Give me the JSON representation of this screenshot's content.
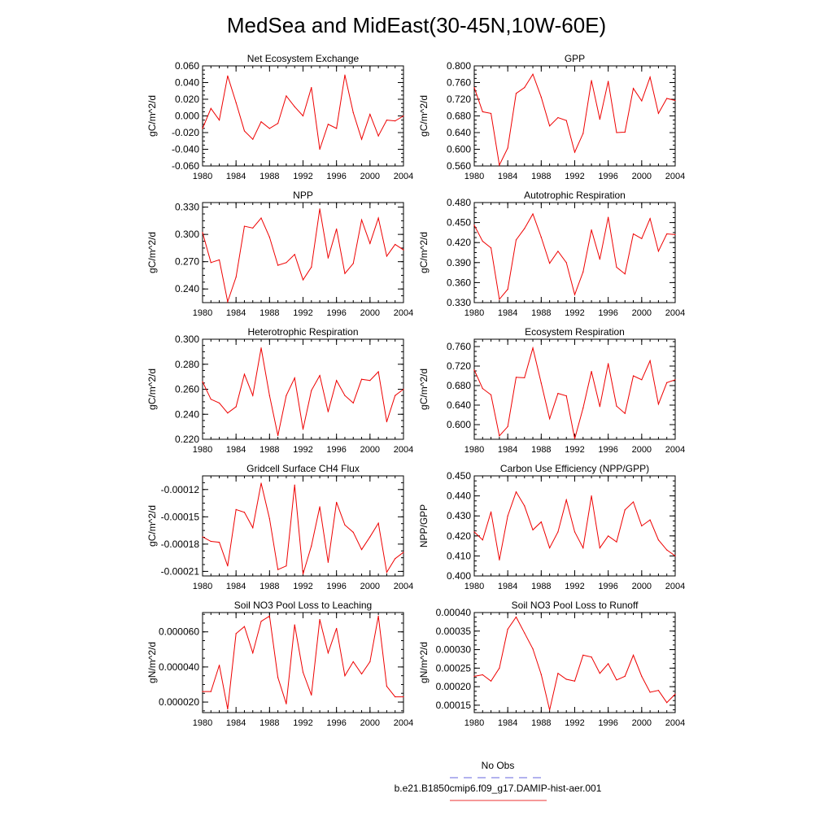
{
  "figure": {
    "title": "MedSea and MidEast(30-45N,10W-60E)",
    "legend": [
      {
        "label": "No Obs",
        "color": "#6666dd",
        "dash": true
      },
      {
        "label": "b.e21.B1850cmip6.f09_g17.DAMIP-hist-aer.001",
        "color": "#ee3333",
        "dash": false
      }
    ]
  },
  "chart_data": [
    {
      "type": "line",
      "title": "Net Ecosystem Exchange",
      "xlabel": "",
      "ylabel": "gC/m^2/d",
      "xlim": [
        1980,
        2004
      ],
      "ylim": [
        -0.06,
        0.06
      ],
      "xticks": [
        "1980",
        "1984",
        "1988",
        "1992",
        "1996",
        "2000",
        "2004"
      ],
      "yticks": [
        "0.060",
        "0.040",
        "0.020",
        "0.000",
        "-0.020",
        "-0.040",
        "-0.060"
      ],
      "ytick_values": [
        0.06,
        0.04,
        0.02,
        0.0,
        -0.02,
        -0.04,
        -0.06
      ],
      "series": [
        {
          "color": "#ee0000",
          "x": [
            1980,
            1981,
            1982,
            1983,
            1984,
            1985,
            1986,
            1987,
            1988,
            1989,
            1990,
            1991,
            1992,
            1993,
            1994,
            1995,
            1996,
            1997,
            1998,
            1999,
            2000,
            2001,
            2002,
            2003,
            2004
          ],
          "values": [
            -0.015,
            0.009,
            -0.005,
            0.048,
            0.016,
            -0.018,
            -0.028,
            -0.007,
            -0.015,
            -0.009,
            0.024,
            0.011,
            0.0,
            0.034,
            -0.04,
            -0.01,
            -0.015,
            0.049,
            0.004,
            -0.028,
            0.002,
            -0.024,
            -0.005,
            -0.006,
            0.0
          ]
        }
      ]
    },
    {
      "type": "line",
      "title": "GPP",
      "xlabel": "",
      "ylabel": "gC/m^2/d",
      "xlim": [
        1980,
        2004
      ],
      "ylim": [
        0.56,
        0.8
      ],
      "xticks": [
        "1980",
        "1984",
        "1988",
        "1992",
        "1996",
        "2000",
        "2004"
      ],
      "yticks": [
        "0.800",
        "0.760",
        "0.720",
        "0.680",
        "0.640",
        "0.600",
        "0.560"
      ],
      "ytick_values": [
        0.8,
        0.76,
        0.72,
        0.68,
        0.64,
        0.6,
        0.56
      ],
      "series": [
        {
          "color": "#ee0000",
          "x": [
            1980,
            1981,
            1982,
            1983,
            1984,
            1985,
            1986,
            1987,
            1988,
            1989,
            1990,
            1991,
            1992,
            1993,
            1994,
            1995,
            1996,
            1997,
            1998,
            1999,
            2000,
            2001,
            2002,
            2003,
            2004
          ],
          "values": [
            0.748,
            0.69,
            0.686,
            0.562,
            0.603,
            0.734,
            0.748,
            0.78,
            0.725,
            0.656,
            0.676,
            0.669,
            0.593,
            0.638,
            0.765,
            0.672,
            0.763,
            0.64,
            0.641,
            0.746,
            0.716,
            0.773,
            0.686,
            0.722,
            0.717
          ]
        }
      ]
    },
    {
      "type": "line",
      "title": "NPP",
      "xlabel": "",
      "ylabel": "gC/m^2/d",
      "xlim": [
        1980,
        2004
      ],
      "ylim": [
        0.225,
        0.335
      ],
      "xticks": [
        "1980",
        "1984",
        "1988",
        "1992",
        "1996",
        "2000",
        "2004"
      ],
      "yticks": [
        "0.330",
        "0.300",
        "0.270",
        "0.240"
      ],
      "ytick_values": [
        0.33,
        0.3,
        0.27,
        0.24
      ],
      "series": [
        {
          "color": "#ee0000",
          "x": [
            1980,
            1981,
            1982,
            1983,
            1984,
            1985,
            1986,
            1987,
            1988,
            1989,
            1990,
            1991,
            1992,
            1993,
            1994,
            1995,
            1996,
            1997,
            1998,
            1999,
            2000,
            2001,
            2002,
            2003,
            2004
          ],
          "values": [
            0.302,
            0.269,
            0.272,
            0.226,
            0.253,
            0.309,
            0.307,
            0.318,
            0.297,
            0.266,
            0.269,
            0.278,
            0.25,
            0.264,
            0.328,
            0.274,
            0.306,
            0.257,
            0.268,
            0.316,
            0.29,
            0.318,
            0.276,
            0.289,
            0.283
          ]
        }
      ]
    },
    {
      "type": "line",
      "title": "Autotrophic Respiration",
      "xlabel": "",
      "ylabel": "gC/m^2/d",
      "xlim": [
        1980,
        2004
      ],
      "ylim": [
        0.33,
        0.48
      ],
      "xticks": [
        "1980",
        "1984",
        "1988",
        "1992",
        "1996",
        "2000",
        "2004"
      ],
      "yticks": [
        "0.480",
        "0.450",
        "0.420",
        "0.390",
        "0.360",
        "0.330"
      ],
      "ytick_values": [
        0.48,
        0.45,
        0.42,
        0.39,
        0.36,
        0.33
      ],
      "series": [
        {
          "color": "#ee0000",
          "x": [
            1980,
            1981,
            1982,
            1983,
            1984,
            1985,
            1986,
            1987,
            1988,
            1989,
            1990,
            1991,
            1992,
            1993,
            1994,
            1995,
            1996,
            1997,
            1998,
            1999,
            2000,
            2001,
            2002,
            2003,
            2004
          ],
          "values": [
            0.446,
            0.422,
            0.412,
            0.335,
            0.35,
            0.424,
            0.441,
            0.463,
            0.428,
            0.389,
            0.407,
            0.39,
            0.342,
            0.376,
            0.439,
            0.395,
            0.458,
            0.383,
            0.373,
            0.433,
            0.426,
            0.456,
            0.407,
            0.433,
            0.432
          ]
        }
      ]
    },
    {
      "type": "line",
      "title": "Heterotrophic Respiration",
      "xlabel": "",
      "ylabel": "gC/m^2/d",
      "xlim": [
        1980,
        2004
      ],
      "ylim": [
        0.22,
        0.3
      ],
      "xticks": [
        "1980",
        "1984",
        "1988",
        "1992",
        "1996",
        "2000",
        "2004"
      ],
      "yticks": [
        "0.300",
        "0.280",
        "0.260",
        "0.240",
        "0.220"
      ],
      "ytick_values": [
        0.3,
        0.28,
        0.26,
        0.24,
        0.22
      ],
      "series": [
        {
          "color": "#ee0000",
          "x": [
            1980,
            1981,
            1982,
            1983,
            1984,
            1985,
            1986,
            1987,
            1988,
            1989,
            1990,
            1991,
            1992,
            1993,
            1994,
            1995,
            1996,
            1997,
            1998,
            1999,
            2000,
            2001,
            2002,
            2003,
            2004
          ],
          "values": [
            0.266,
            0.252,
            0.249,
            0.241,
            0.246,
            0.272,
            0.255,
            0.293,
            0.255,
            0.223,
            0.255,
            0.269,
            0.228,
            0.259,
            0.271,
            0.242,
            0.267,
            0.255,
            0.249,
            0.268,
            0.267,
            0.274,
            0.234,
            0.255,
            0.26
          ]
        }
      ]
    },
    {
      "type": "line",
      "title": "Ecosystem Respiration",
      "xlabel": "",
      "ylabel": "gC/m^2/d",
      "xlim": [
        1980,
        2004
      ],
      "ylim": [
        0.57,
        0.775
      ],
      "xticks": [
        "1980",
        "1984",
        "1988",
        "1992",
        "1996",
        "2000",
        "2004"
      ],
      "yticks": [
        "0.760",
        "0.720",
        "0.680",
        "0.640",
        "0.600"
      ],
      "ytick_values": [
        0.76,
        0.72,
        0.68,
        0.64,
        0.6
      ],
      "series": [
        {
          "color": "#ee0000",
          "x": [
            1980,
            1981,
            1982,
            1983,
            1984,
            1985,
            1986,
            1987,
            1988,
            1989,
            1990,
            1991,
            1992,
            1993,
            1994,
            1995,
            1996,
            1997,
            1998,
            1999,
            2000,
            2001,
            2002,
            2003,
            2004
          ],
          "values": [
            0.712,
            0.674,
            0.661,
            0.577,
            0.596,
            0.697,
            0.696,
            0.757,
            0.685,
            0.612,
            0.664,
            0.659,
            0.571,
            0.634,
            0.709,
            0.637,
            0.725,
            0.638,
            0.623,
            0.7,
            0.692,
            0.731,
            0.642,
            0.686,
            0.692
          ]
        }
      ]
    },
    {
      "type": "line",
      "title": "Gridcell Surface CH4 Flux",
      "xlabel": "",
      "ylabel": "gC/m^2/d",
      "xlim": [
        1980,
        2004
      ],
      "ylim": [
        -0.000215,
        -0.000105
      ],
      "xticks": [
        "1980",
        "1984",
        "1988",
        "1992",
        "1996",
        "2000",
        "2004"
      ],
      "yticks": [
        "-0.00012",
        "-0.00015",
        "-0.00018",
        "-0.00021"
      ],
      "ytick_values": [
        -0.00012,
        -0.00015,
        -0.00018,
        -0.00021
      ],
      "series": [
        {
          "color": "#ee0000",
          "x": [
            1980,
            1981,
            1982,
            1983,
            1984,
            1985,
            1986,
            1987,
            1988,
            1989,
            1990,
            1991,
            1992,
            1993,
            1994,
            1995,
            1996,
            1997,
            1998,
            1999,
            2000,
            2001,
            2002,
            2003,
            2004
          ],
          "values": [
            -0.000172,
            -0.000177,
            -0.000178,
            -0.000204,
            -0.000142,
            -0.000145,
            -0.000162,
            -0.000113,
            -0.000152,
            -0.000208,
            -0.000204,
            -0.000115,
            -0.000213,
            -0.000182,
            -0.000139,
            -0.0002,
            -0.000134,
            -0.000159,
            -0.000167,
            -0.000186,
            -0.000172,
            -0.000157,
            -0.000211,
            -0.000196,
            -0.000189
          ]
        }
      ]
    },
    {
      "type": "line",
      "title": "Carbon Use Efficiency (NPP/GPP)",
      "xlabel": "",
      "ylabel": "NPP/GPP",
      "xlim": [
        1980,
        2004
      ],
      "ylim": [
        0.4,
        0.45
      ],
      "xticks": [
        "1980",
        "1984",
        "1988",
        "1992",
        "1996",
        "2000",
        "2004"
      ],
      "yticks": [
        "0.450",
        "0.440",
        "0.430",
        "0.420",
        "0.410",
        "0.400"
      ],
      "ytick_values": [
        0.45,
        0.44,
        0.43,
        0.42,
        0.41,
        0.4
      ],
      "series": [
        {
          "color": "#ee0000",
          "x": [
            1980,
            1981,
            1982,
            1983,
            1984,
            1985,
            1986,
            1987,
            1988,
            1989,
            1990,
            1991,
            1992,
            1993,
            1994,
            1995,
            1996,
            1997,
            1998,
            1999,
            2000,
            2001,
            2002,
            2003,
            2004
          ],
          "values": [
            0.422,
            0.418,
            0.432,
            0.408,
            0.43,
            0.442,
            0.435,
            0.423,
            0.427,
            0.414,
            0.422,
            0.438,
            0.422,
            0.414,
            0.44,
            0.414,
            0.42,
            0.417,
            0.433,
            0.437,
            0.425,
            0.428,
            0.418,
            0.413,
            0.41
          ]
        }
      ]
    },
    {
      "type": "line",
      "title": "Soil NO3 Pool Loss to Leaching",
      "xlabel": "",
      "ylabel": "gN/m^2/d",
      "xlim": [
        1980,
        2004
      ],
      "ylim": [
        1.4e-05,
        7.1e-05
      ],
      "xticks": [
        "1980",
        "1984",
        "1988",
        "1992",
        "1996",
        "2000",
        "2004"
      ],
      "yticks": [
        "0.000060",
        "0.000040",
        "0.000020"
      ],
      "ytick_values": [
        6e-05,
        4e-05,
        2e-05
      ],
      "series": [
        {
          "color": "#ee0000",
          "x": [
            1980,
            1981,
            1982,
            1983,
            1984,
            1985,
            1986,
            1987,
            1988,
            1989,
            1990,
            1991,
            1992,
            1993,
            1994,
            1995,
            1996,
            1997,
            1998,
            1999,
            2000,
            2001,
            2002,
            2003,
            2004
          ],
          "values": [
            2.6e-05,
            2.6e-05,
            4.1e-05,
            1.6e-05,
            5.9e-05,
            6.3e-05,
            4.8e-05,
            6.6e-05,
            6.9e-05,
            3.4e-05,
            1.9e-05,
            6.4e-05,
            3.7e-05,
            2.4e-05,
            6.7e-05,
            4.8e-05,
            6.2e-05,
            3.5e-05,
            4.3e-05,
            3.6e-05,
            4.3e-05,
            6.9e-05,
            2.9e-05,
            2.3e-05,
            2.3e-05
          ]
        }
      ]
    },
    {
      "type": "line",
      "title": "Soil NO3 Pool Loss to Runoff",
      "xlabel": "",
      "ylabel": "gN/m^2/d",
      "xlim": [
        1980,
        2004
      ],
      "ylim": [
        0.00013,
        0.0004
      ],
      "xticks": [
        "1980",
        "1984",
        "1988",
        "1992",
        "1996",
        "2000",
        "2004"
      ],
      "yticks": [
        "0.00040",
        "0.00035",
        "0.00030",
        "0.00025",
        "0.00020",
        "0.00015"
      ],
      "ytick_values": [
        0.0004,
        0.00035,
        0.0003,
        0.00025,
        0.0002,
        0.00015
      ],
      "series": [
        {
          "color": "#ee0000",
          "x": [
            1980,
            1981,
            1982,
            1983,
            1984,
            1985,
            1986,
            1987,
            1988,
            1989,
            1990,
            1991,
            1992,
            1993,
            1994,
            1995,
            1996,
            1997,
            1998,
            1999,
            2000,
            2001,
            2002,
            2003,
            2004
          ],
          "values": [
            0.000228,
            0.000232,
            0.000215,
            0.00025,
            0.000355,
            0.000388,
            0.000345,
            0.000302,
            0.000233,
            0.000137,
            0.000236,
            0.00022,
            0.000215,
            0.000285,
            0.00028,
            0.000236,
            0.000262,
            0.000218,
            0.000228,
            0.000285,
            0.000228,
            0.000185,
            0.00019,
            0.000157,
            0.00018
          ]
        }
      ]
    }
  ]
}
